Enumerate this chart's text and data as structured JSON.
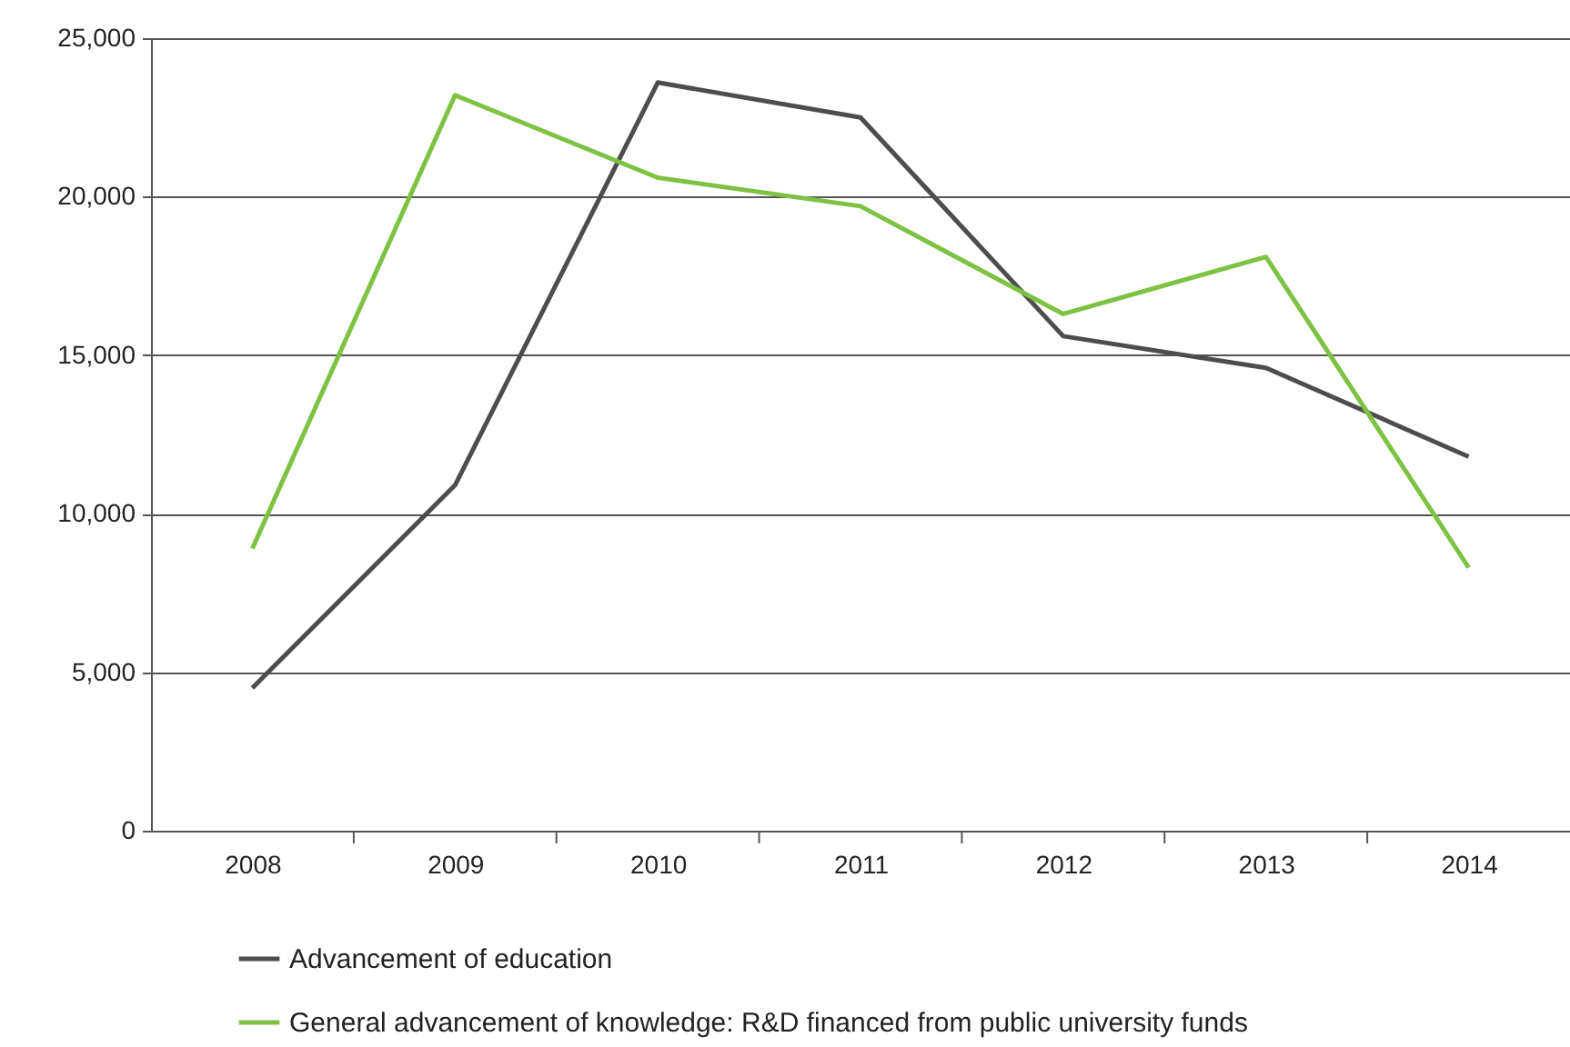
{
  "chart_data": {
    "type": "line",
    "categories": [
      "2008",
      "2009",
      "2010",
      "2011",
      "2012",
      "2013",
      "2014"
    ],
    "series": [
      {
        "name": "Advancement of education",
        "color": "#4d4d4d",
        "values": [
          4500,
          10900,
          23600,
          22500,
          15600,
          14600,
          11800
        ]
      },
      {
        "name": "General advancement of knowledge: R&D financed from public university funds",
        "color": "#7dc242",
        "values": [
          8900,
          23200,
          20600,
          19700,
          16300,
          18100,
          8300
        ]
      }
    ],
    "ylim": [
      0,
      25000
    ],
    "yticks": [
      {
        "value": 0,
        "label": "0"
      },
      {
        "value": 5000,
        "label": "5,000"
      },
      {
        "value": 10000,
        "label": "10,000"
      },
      {
        "value": 15000,
        "label": "15,000"
      },
      {
        "value": 20000,
        "label": "20,000"
      },
      {
        "value": 25000,
        "label": "25,000"
      }
    ],
    "grid": "y",
    "legend": "bottom",
    "marker": "none",
    "line_style": "solid"
  }
}
